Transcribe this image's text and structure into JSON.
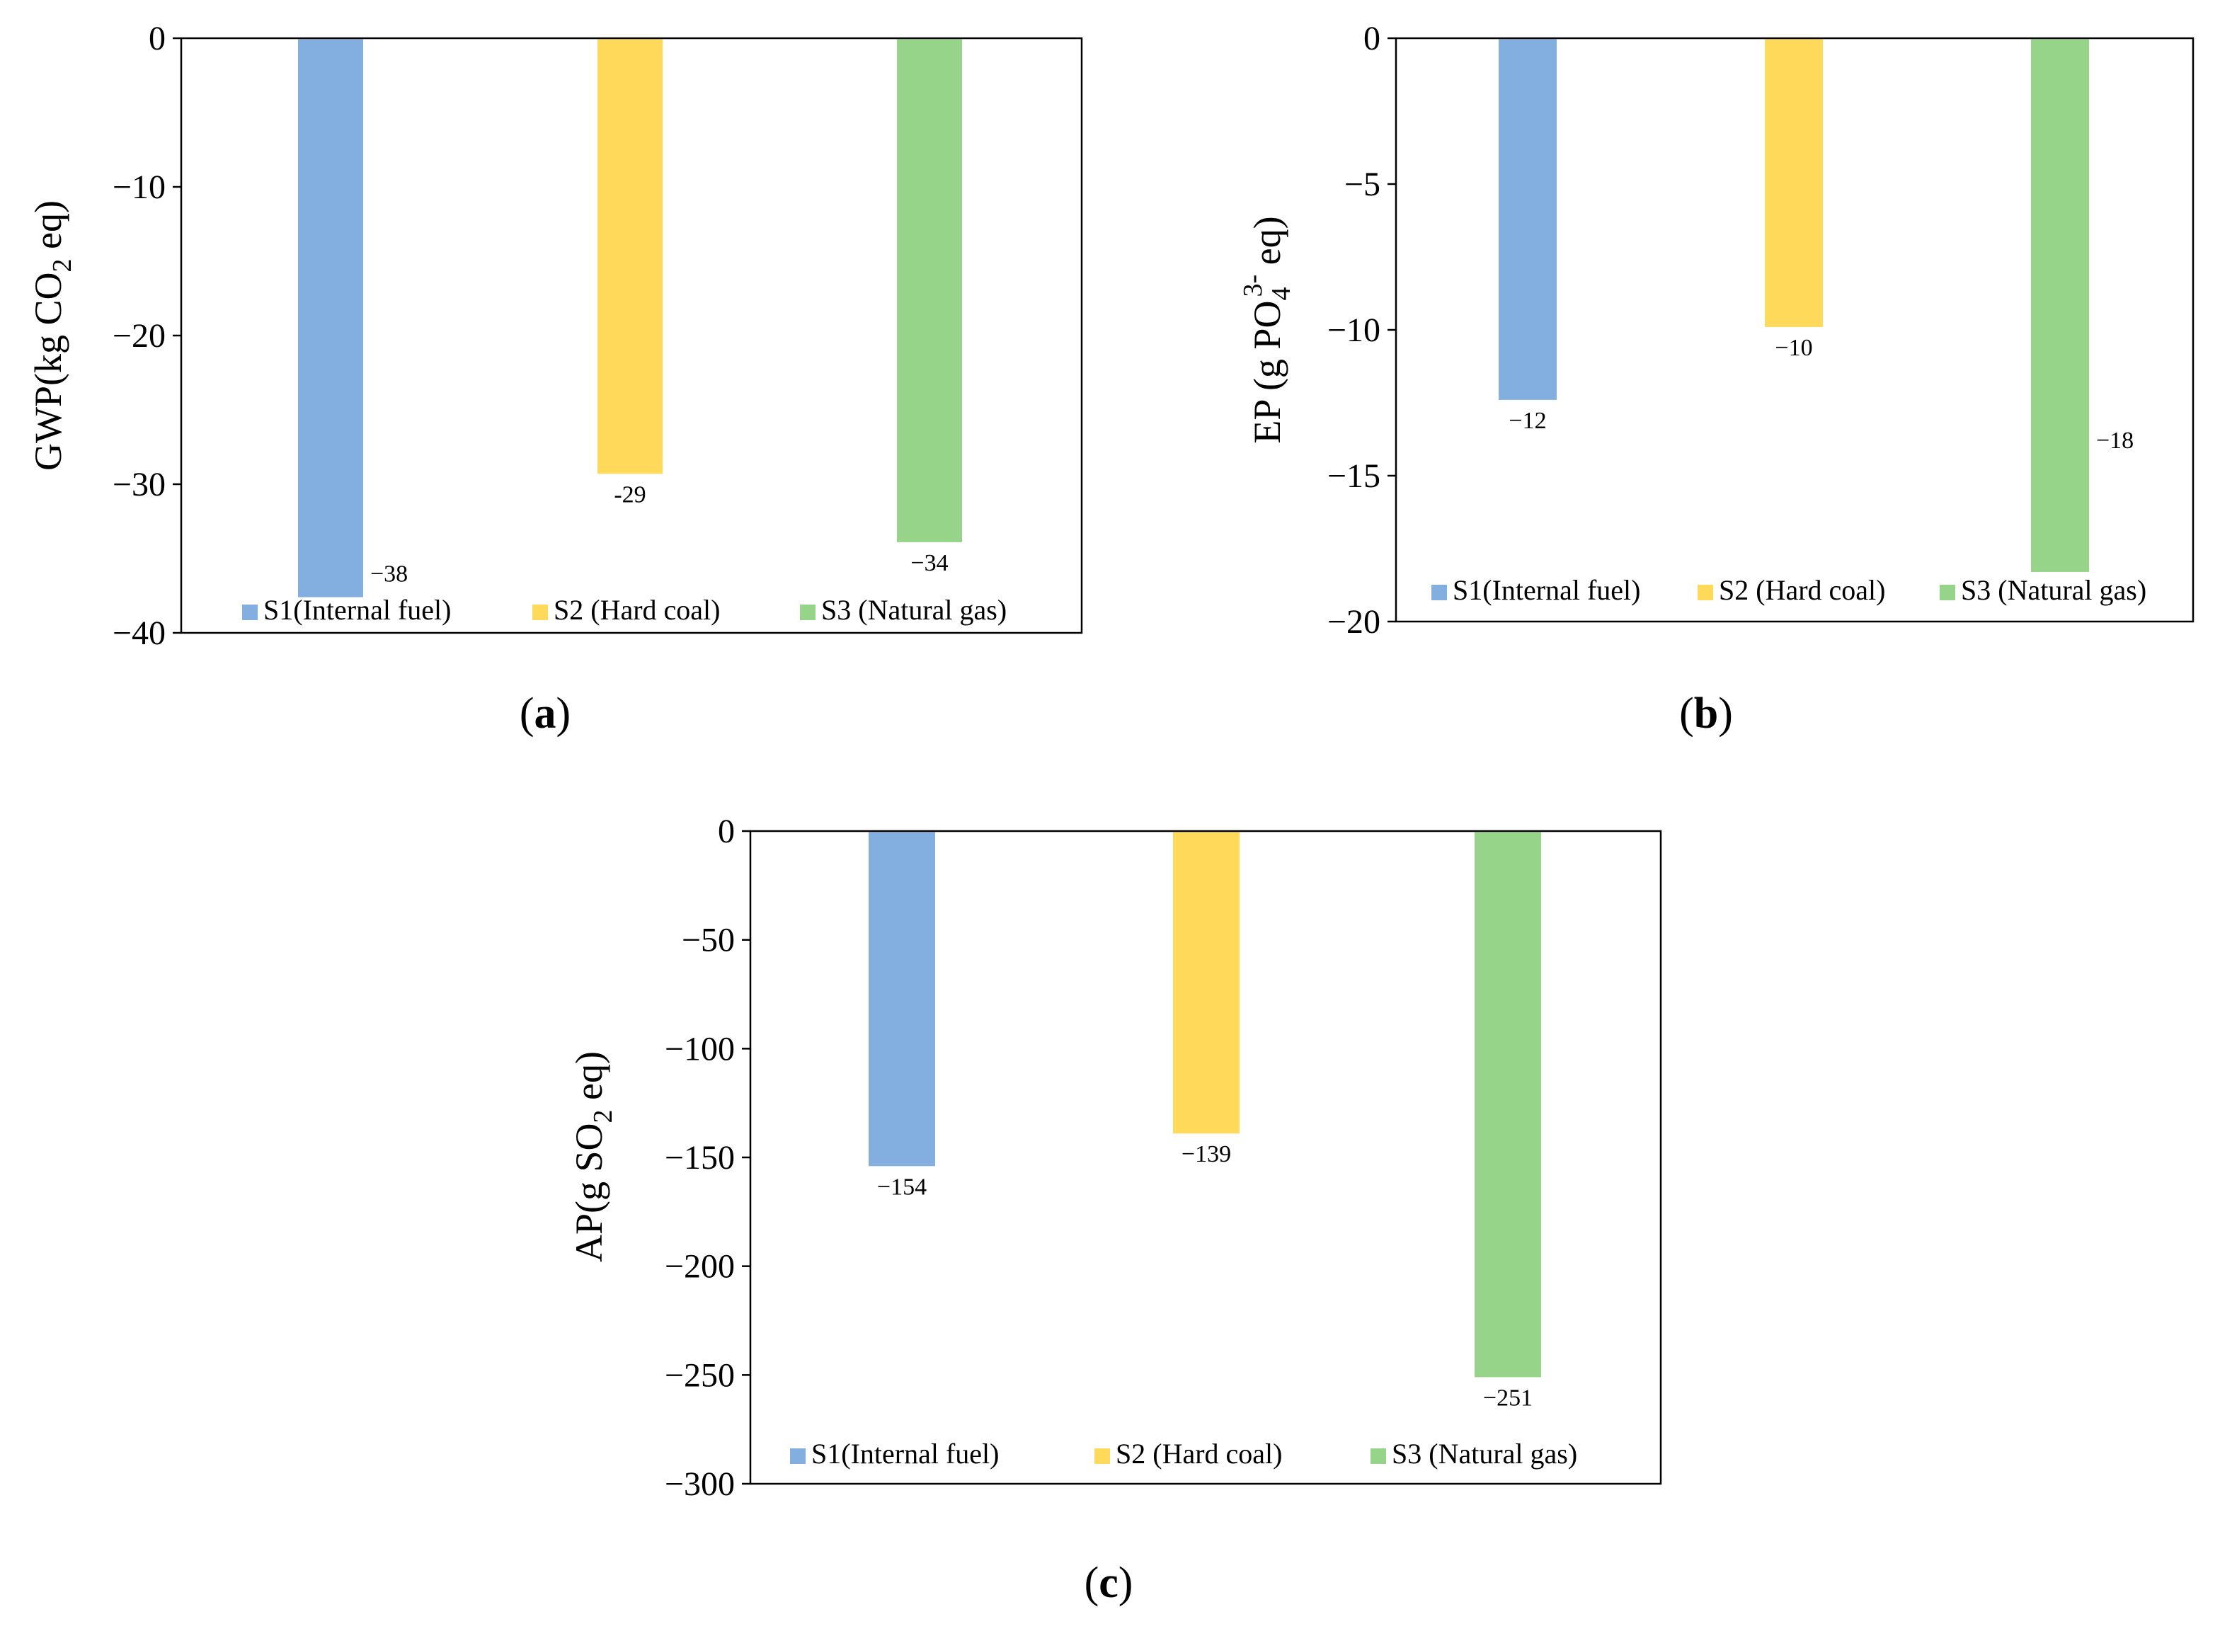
{
  "chart_data": [
    {
      "type": "bar",
      "panel_label": "(a)",
      "ylabel_pre": "GWP(kg CO",
      "ylabel_sub": "2",
      "ylabel_post": " eq)",
      "ylim": [
        -40,
        0
      ],
      "yticks": [
        0,
        -10,
        -20,
        -30,
        -40
      ],
      "ytick_labels": [
        "0",
        "−10",
        "−20",
        "−30",
        "−40"
      ],
      "series": [
        {
          "name": "S1(Internal fuel)",
          "color": "#83AEE0",
          "value": -37.6,
          "label": "−38"
        },
        {
          "name": "S2 (Hard coal)",
          "color": "#FFD95A",
          "value": -29.3,
          "label": "-29"
        },
        {
          "name": "S3 (Natural gas)",
          "color": "#96D48A",
          "value": -33.9,
          "label": "−34"
        }
      ]
    },
    {
      "type": "bar",
      "panel_label": "(b)",
      "ylabel_pre": "EP (g PO",
      "ylabel_sub": "4",
      "ylabel_sup": "3-",
      "ylabel_post": " eq)",
      "ylim": [
        -20,
        0
      ],
      "yticks": [
        0,
        -5,
        -10,
        -15,
        -20
      ],
      "ytick_labels": [
        "0",
        "−5",
        "−10",
        "−15",
        "−20"
      ],
      "series": [
        {
          "name": "S1(Internal fuel)",
          "color": "#83AEE0",
          "value": -12.4,
          "label": "−12"
        },
        {
          "name": "S2 (Hard coal)",
          "color": "#FFD95A",
          "value": -9.9,
          "label": "−10"
        },
        {
          "name": "S3 (Natural gas)",
          "color": "#96D48A",
          "value": -18.3,
          "label": "−18"
        }
      ]
    },
    {
      "type": "bar",
      "panel_label": "(c)",
      "ylabel_pre": "AP(g SO",
      "ylabel_sub": "2",
      "ylabel_post": " eq)",
      "ylim": [
        -300,
        0
      ],
      "yticks": [
        0,
        -50,
        -100,
        -150,
        -200,
        -250,
        -300
      ],
      "ytick_labels": [
        "0",
        "−50",
        "−100",
        "−150",
        "−200",
        "−250",
        "−300"
      ],
      "series": [
        {
          "name": "S1(Internal fuel)",
          "color": "#83AEE0",
          "value": -154,
          "label": "−154"
        },
        {
          "name": "S2 (Hard coal)",
          "color": "#FFD95A",
          "value": -139,
          "label": "−139"
        },
        {
          "name": "S3 (Natural gas)",
          "color": "#96D48A",
          "value": -251,
          "label": "−251"
        }
      ]
    }
  ]
}
